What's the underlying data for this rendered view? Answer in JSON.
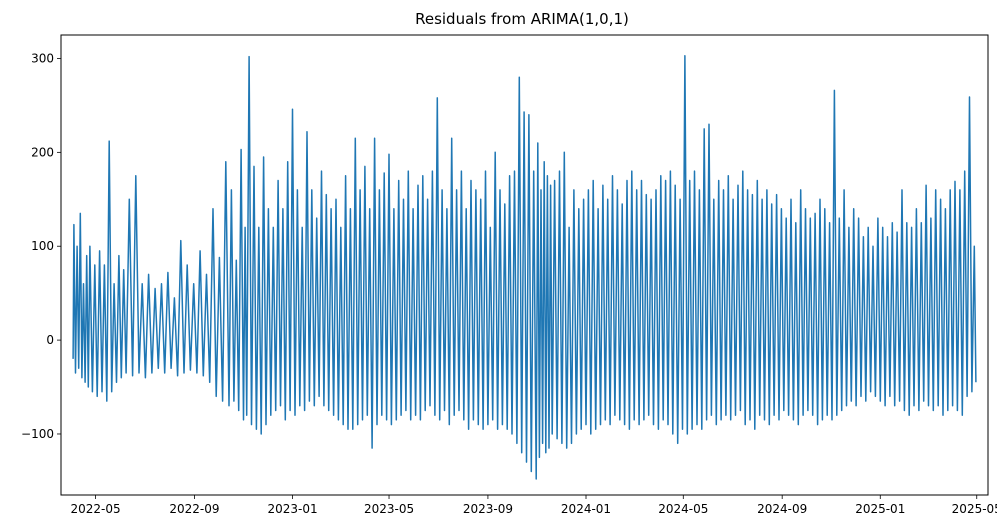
{
  "chart_data": {
    "type": "line",
    "title": "Residuals from ARIMA(1,0,1)",
    "xlabel": "",
    "ylabel": "",
    "x_range": [
      "2022-03-19",
      "2025-05-15"
    ],
    "y_range": [
      -165,
      325
    ],
    "x_ticks": [
      {
        "date": "2022-05-01",
        "label": "2022-05"
      },
      {
        "date": "2022-09-01",
        "label": "2022-09"
      },
      {
        "date": "2023-01-01",
        "label": "2023-01"
      },
      {
        "date": "2023-05-01",
        "label": "2023-05"
      },
      {
        "date": "2023-09-01",
        "label": "2023-09"
      },
      {
        "date": "2024-01-01",
        "label": "2024-01"
      },
      {
        "date": "2024-05-01",
        "label": "2024-05"
      },
      {
        "date": "2024-09-01",
        "label": "2024-09"
      },
      {
        "date": "2025-01-01",
        "label": "2025-01"
      },
      {
        "date": "2025-05-01",
        "label": "2025-05"
      }
    ],
    "y_ticks": [
      {
        "value": 300,
        "label": "300"
      },
      {
        "value": 200,
        "label": "200"
      },
      {
        "value": 100,
        "label": "100"
      },
      {
        "value": 0,
        "label": "0"
      },
      {
        "value": -100,
        "label": "−100"
      }
    ],
    "grid": false,
    "series": [
      {
        "color": "#1f77b4",
        "x": [
          "2022-04-03",
          "2022-04-04",
          "2022-04-06",
          "2022-04-08",
          "2022-04-10",
          "2022-04-12",
          "2022-04-14",
          "2022-04-16",
          "2022-04-18",
          "2022-04-20",
          "2022-04-22",
          "2022-04-24",
          "2022-04-27",
          "2022-04-30",
          "2022-05-03",
          "2022-05-06",
          "2022-05-09",
          "2022-05-12",
          "2022-05-15",
          "2022-05-18",
          "2022-05-21",
          "2022-05-24",
          "2022-05-27",
          "2022-05-30",
          "2022-06-02",
          "2022-06-05",
          "2022-06-08",
          "2022-06-12",
          "2022-06-16",
          "2022-06-20",
          "2022-06-24",
          "2022-06-28",
          "2022-07-02",
          "2022-07-06",
          "2022-07-10",
          "2022-07-14",
          "2022-07-18",
          "2022-07-22",
          "2022-07-26",
          "2022-07-30",
          "2022-08-03",
          "2022-08-07",
          "2022-08-11",
          "2022-08-15",
          "2022-08-19",
          "2022-08-23",
          "2022-08-27",
          "2022-08-31",
          "2022-09-04",
          "2022-09-08",
          "2022-09-12",
          "2022-09-16",
          "2022-09-20",
          "2022-09-24",
          "2022-09-28",
          "2022-10-02",
          "2022-10-06",
          "2022-10-10",
          "2022-10-14",
          "2022-10-17",
          "2022-10-20",
          "2022-10-23",
          "2022-10-26",
          "2022-10-29",
          "2022-11-01",
          "2022-11-03",
          "2022-11-05",
          "2022-11-08",
          "2022-11-11",
          "2022-11-14",
          "2022-11-17",
          "2022-11-20",
          "2022-11-23",
          "2022-11-26",
          "2022-11-29",
          "2022-12-02",
          "2022-12-05",
          "2022-12-08",
          "2022-12-11",
          "2022-12-14",
          "2022-12-17",
          "2022-12-20",
          "2022-12-23",
          "2022-12-26",
          "2022-12-29",
          "2023-01-01",
          "2023-01-04",
          "2023-01-07",
          "2023-01-10",
          "2023-01-13",
          "2023-01-16",
          "2023-01-19",
          "2023-01-22",
          "2023-01-25",
          "2023-01-28",
          "2023-01-31",
          "2023-02-03",
          "2023-02-06",
          "2023-02-09",
          "2023-02-12",
          "2023-02-15",
          "2023-02-18",
          "2023-02-21",
          "2023-02-24",
          "2023-02-27",
          "2023-03-02",
          "2023-03-05",
          "2023-03-08",
          "2023-03-11",
          "2023-03-14",
          "2023-03-17",
          "2023-03-20",
          "2023-03-23",
          "2023-03-26",
          "2023-03-29",
          "2023-04-01",
          "2023-04-04",
          "2023-04-07",
          "2023-04-10",
          "2023-04-13",
          "2023-04-16",
          "2023-04-19",
          "2023-04-22",
          "2023-04-25",
          "2023-04-28",
          "2023-05-01",
          "2023-05-04",
          "2023-05-07",
          "2023-05-10",
          "2023-05-13",
          "2023-05-16",
          "2023-05-19",
          "2023-05-22",
          "2023-05-25",
          "2023-05-28",
          "2023-05-31",
          "2023-06-03",
          "2023-06-06",
          "2023-06-09",
          "2023-06-12",
          "2023-06-15",
          "2023-06-18",
          "2023-06-21",
          "2023-06-24",
          "2023-06-27",
          "2023-06-30",
          "2023-07-03",
          "2023-07-06",
          "2023-07-09",
          "2023-07-12",
          "2023-07-15",
          "2023-07-18",
          "2023-07-21",
          "2023-07-24",
          "2023-07-27",
          "2023-07-30",
          "2023-08-02",
          "2023-08-05",
          "2023-08-08",
          "2023-08-11",
          "2023-08-14",
          "2023-08-17",
          "2023-08-20",
          "2023-08-23",
          "2023-08-26",
          "2023-08-29",
          "2023-09-01",
          "2023-09-04",
          "2023-09-07",
          "2023-09-10",
          "2023-09-13",
          "2023-09-16",
          "2023-09-19",
          "2023-09-22",
          "2023-09-25",
          "2023-09-28",
          "2023-10-01",
          "2023-10-04",
          "2023-10-07",
          "2023-10-10",
          "2023-10-13",
          "2023-10-16",
          "2023-10-19",
          "2023-10-22",
          "2023-10-25",
          "2023-10-28",
          "2023-10-31",
          "2023-11-02",
          "2023-11-04",
          "2023-11-06",
          "2023-11-08",
          "2023-11-10",
          "2023-11-12",
          "2023-11-14",
          "2023-11-16",
          "2023-11-18",
          "2023-11-20",
          "2023-11-23",
          "2023-11-26",
          "2023-11-29",
          "2023-12-02",
          "2023-12-05",
          "2023-12-08",
          "2023-12-11",
          "2023-12-14",
          "2023-12-17",
          "2023-12-20",
          "2023-12-23",
          "2023-12-26",
          "2023-12-29",
          "2024-01-01",
          "2024-01-04",
          "2024-01-07",
          "2024-01-10",
          "2024-01-13",
          "2024-01-16",
          "2024-01-19",
          "2024-01-22",
          "2024-01-25",
          "2024-01-28",
          "2024-01-31",
          "2024-02-03",
          "2024-02-06",
          "2024-02-09",
          "2024-02-12",
          "2024-02-15",
          "2024-02-18",
          "2024-02-21",
          "2024-02-24",
          "2024-02-27",
          "2024-03-01",
          "2024-03-04",
          "2024-03-07",
          "2024-03-10",
          "2024-03-13",
          "2024-03-16",
          "2024-03-19",
          "2024-03-22",
          "2024-03-25",
          "2024-03-28",
          "2024-03-31",
          "2024-04-03",
          "2024-04-06",
          "2024-04-09",
          "2024-04-12",
          "2024-04-15",
          "2024-04-18",
          "2024-04-21",
          "2024-04-24",
          "2024-04-27",
          "2024-04-30",
          "2024-05-03",
          "2024-05-06",
          "2024-05-09",
          "2024-05-12",
          "2024-05-15",
          "2024-05-18",
          "2024-05-21",
          "2024-05-24",
          "2024-05-27",
          "2024-05-30",
          "2024-06-02",
          "2024-06-05",
          "2024-06-08",
          "2024-06-11",
          "2024-06-14",
          "2024-06-17",
          "2024-06-20",
          "2024-06-23",
          "2024-06-26",
          "2024-06-29",
          "2024-07-02",
          "2024-07-05",
          "2024-07-08",
          "2024-07-11",
          "2024-07-14",
          "2024-07-17",
          "2024-07-20",
          "2024-07-23",
          "2024-07-26",
          "2024-07-29",
          "2024-08-01",
          "2024-08-04",
          "2024-08-07",
          "2024-08-10",
          "2024-08-13",
          "2024-08-16",
          "2024-08-19",
          "2024-08-22",
          "2024-08-25",
          "2024-08-28",
          "2024-08-31",
          "2024-09-03",
          "2024-09-06",
          "2024-09-09",
          "2024-09-12",
          "2024-09-15",
          "2024-09-18",
          "2024-09-21",
          "2024-09-24",
          "2024-09-27",
          "2024-09-30",
          "2024-10-03",
          "2024-10-06",
          "2024-10-09",
          "2024-10-12",
          "2024-10-15",
          "2024-10-18",
          "2024-10-21",
          "2024-10-24",
          "2024-10-27",
          "2024-10-30",
          "2024-11-02",
          "2024-11-05",
          "2024-11-08",
          "2024-11-11",
          "2024-11-14",
          "2024-11-17",
          "2024-11-20",
          "2024-11-23",
          "2024-11-26",
          "2024-11-29",
          "2024-12-02",
          "2024-12-05",
          "2024-12-08",
          "2024-12-11",
          "2024-12-14",
          "2024-12-17",
          "2024-12-20",
          "2024-12-23",
          "2024-12-26",
          "2024-12-29",
          "2025-01-01",
          "2025-01-04",
          "2025-01-07",
          "2025-01-10",
          "2025-01-13",
          "2025-01-16",
          "2025-01-19",
          "2025-01-22",
          "2025-01-25",
          "2025-01-28",
          "2025-01-31",
          "2025-02-03",
          "2025-02-06",
          "2025-02-09",
          "2025-02-12",
          "2025-02-15",
          "2025-02-18",
          "2025-02-21",
          "2025-02-24",
          "2025-02-27",
          "2025-03-02",
          "2025-03-05",
          "2025-03-08",
          "2025-03-11",
          "2025-03-14",
          "2025-03-17",
          "2025-03-20",
          "2025-03-23",
          "2025-03-26",
          "2025-03-29",
          "2025-04-01",
          "2025-04-04",
          "2025-04-07",
          "2025-04-10",
          "2025-04-13",
          "2025-04-16",
          "2025-04-19",
          "2025-04-22",
          "2025-04-25",
          "2025-04-28",
          "2025-04-30"
        ],
        "y": [
          -20,
          123,
          -35,
          100,
          -30,
          135,
          -40,
          60,
          -45,
          90,
          -50,
          100,
          -55,
          80,
          -60,
          95,
          -55,
          80,
          -65,
          212,
          -55,
          60,
          -45,
          90,
          -40,
          75,
          -35,
          150,
          -38,
          175,
          -35,
          60,
          -40,
          70,
          -35,
          55,
          -30,
          60,
          -35,
          72,
          -30,
          45,
          -38,
          106,
          -35,
          80,
          -32,
          60,
          -35,
          95,
          -38,
          70,
          -45,
          140,
          -60,
          88,
          -65,
          190,
          -70,
          160,
          -65,
          85,
          -75,
          203,
          -85,
          120,
          -80,
          302,
          -90,
          185,
          -95,
          120,
          -100,
          195,
          -90,
          140,
          -80,
          120,
          -75,
          170,
          -70,
          140,
          -85,
          190,
          -75,
          246,
          -80,
          160,
          -70,
          120,
          -75,
          222,
          -65,
          160,
          -70,
          130,
          -60,
          180,
          -70,
          155,
          -75,
          140,
          -80,
          150,
          -85,
          120,
          -90,
          175,
          -95,
          140,
          -95,
          215,
          -90,
          160,
          -85,
          185,
          -80,
          140,
          -115,
          215,
          -90,
          160,
          -80,
          178,
          -85,
          198,
          -90,
          140,
          -85,
          170,
          -80,
          150,
          -75,
          180,
          -85,
          140,
          -80,
          165,
          -85,
          175,
          -75,
          150,
          -70,
          180,
          -80,
          258,
          -85,
          160,
          -75,
          140,
          -90,
          215,
          -80,
          160,
          -75,
          180,
          -85,
          140,
          -95,
          170,
          -85,
          160,
          -90,
          150,
          -95,
          180,
          -90,
          120,
          -85,
          200,
          -95,
          160,
          -90,
          145,
          -95,
          175,
          -100,
          180,
          -110,
          280,
          -120,
          243,
          -130,
          240,
          -140,
          180,
          -148,
          210,
          -125,
          160,
          -110,
          190,
          -120,
          175,
          -115,
          165,
          -100,
          170,
          -105,
          180,
          -110,
          200,
          -115,
          120,
          -110,
          160,
          -100,
          140,
          -95,
          150,
          -90,
          160,
          -100,
          170,
          -95,
          140,
          -90,
          165,
          -85,
          150,
          -90,
          175,
          -80,
          160,
          -85,
          145,
          -90,
          170,
          -95,
          180,
          -85,
          160,
          -90,
          170,
          -85,
          155,
          -80,
          150,
          -90,
          160,
          -95,
          175,
          -85,
          170,
          -90,
          180,
          -100,
          165,
          -110,
          150,
          -95,
          303,
          -100,
          170,
          -95,
          180,
          -90,
          160,
          -95,
          225,
          -85,
          230,
          -80,
          150,
          -90,
          170,
          -85,
          160,
          -80,
          175,
          -85,
          150,
          -80,
          165,
          -75,
          180,
          -90,
          160,
          -85,
          155,
          -95,
          170,
          -80,
          150,
          -85,
          160,
          -90,
          145,
          -80,
          155,
          -85,
          140,
          -75,
          130,
          -80,
          150,
          -85,
          125,
          -90,
          160,
          -80,
          140,
          -75,
          130,
          -80,
          135,
          -90,
          150,
          -85,
          140,
          -80,
          125,
          -85,
          266,
          -80,
          130,
          -75,
          160,
          -70,
          120,
          -65,
          140,
          -70,
          130,
          -60,
          110,
          -65,
          120,
          -55,
          100,
          -60,
          130,
          -65,
          120,
          -70,
          110,
          -60,
          125,
          -70,
          115,
          -65,
          160,
          -75,
          125,
          -80,
          120,
          -70,
          140,
          -75,
          125,
          -65,
          165,
          -70,
          130,
          -75,
          160,
          -70,
          150,
          -80,
          140,
          -75,
          160,
          -70,
          169,
          -75,
          160,
          -80,
          180,
          -60,
          259,
          -55,
          100,
          -45
        ]
      }
    ]
  }
}
